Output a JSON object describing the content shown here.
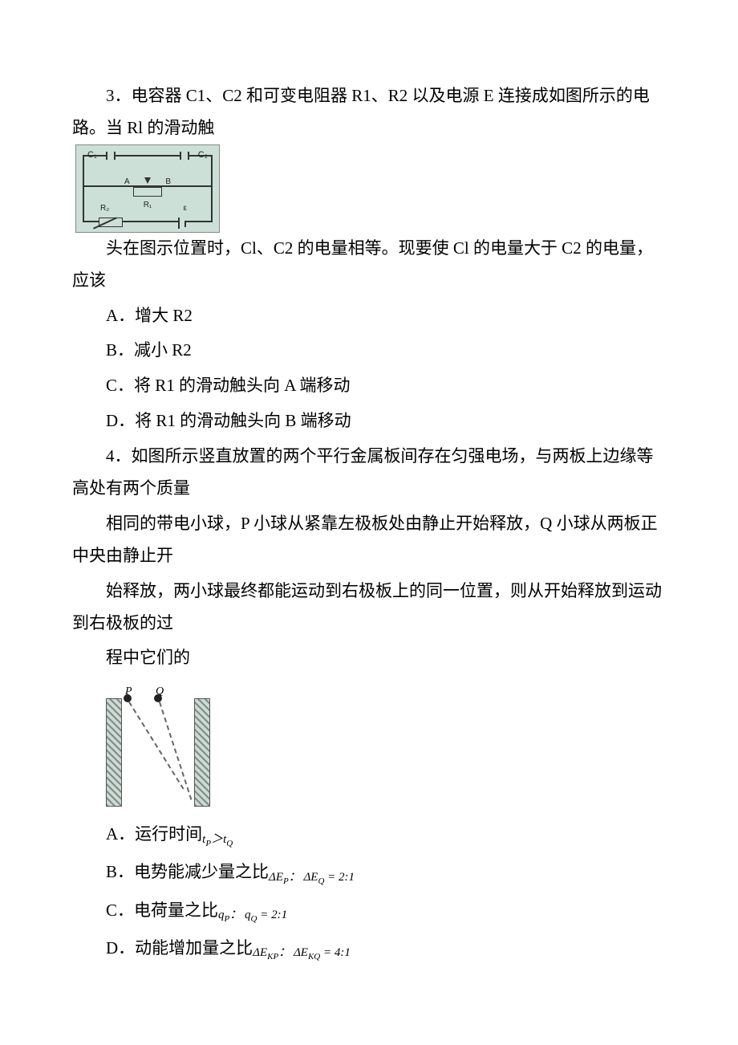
{
  "q3": {
    "stem1": "3．电容器 C1、C2 和可变电阻器 R1、R2 以及电源 E 连接成如图所示的电路。当 Rl 的滑动触",
    "stem2": "头在图示位置时，Cl、C2 的电量相等。现要使 Cl 的电量大于 C2 的电量，应该",
    "A": "A．增大 R2",
    "B": "B．减小 R2",
    "C": "C．将 R1 的滑动触头向 A 端移动",
    "D": "D．将 R1 的滑动触头向 B 端移动",
    "circuit": {
      "C1": "C₁",
      "C2": "C₂",
      "A": "A",
      "B": "B",
      "R1": "R₁",
      "R2": "R₂",
      "E": "ε"
    }
  },
  "q4": {
    "stem1": "4．如图所示竖直放置的两个平行金属板间存在匀强电场，与两板上边缘等高处有两个质量",
    "stem2": "相同的带电小球，P 小球从紧靠左极板处由静止开始释放，Q 小球从两板正中央由静止开",
    "stem3": "始释放，两小球最终都能运动到右极板上的同一位置，则从开始释放到运动到右极板的过",
    "stem4": "程中它们的",
    "labelP": "P",
    "labelQ": "Q",
    "A": "A．运行时间",
    "A_formula_lhs": "t",
    "A_formula_subP": "P",
    "A_formula_op": "＞",
    "A_formula_rhs": "t",
    "A_formula_subQ": "Q",
    "B": "B．电势能减少量之比",
    "B_formula": "ΔE",
    "B_subP": "P",
    "B_colon": "：",
    "B_formula2": "ΔE",
    "B_subQ": "Q",
    "B_eq": " = 2:1",
    "C": "C．电荷量之比",
    "C_q": "q",
    "C_subP": "P",
    "C_colon": "：",
    "C_q2": "q",
    "C_subQ": "Q",
    "C_eq": " = 2:1",
    "D": "D．动能增加量之比",
    "D_E": "ΔE",
    "D_subKP": "KP",
    "D_colon": "：",
    "D_E2": "ΔE",
    "D_subKQ": "KQ",
    "D_eq": " = 4:1"
  }
}
